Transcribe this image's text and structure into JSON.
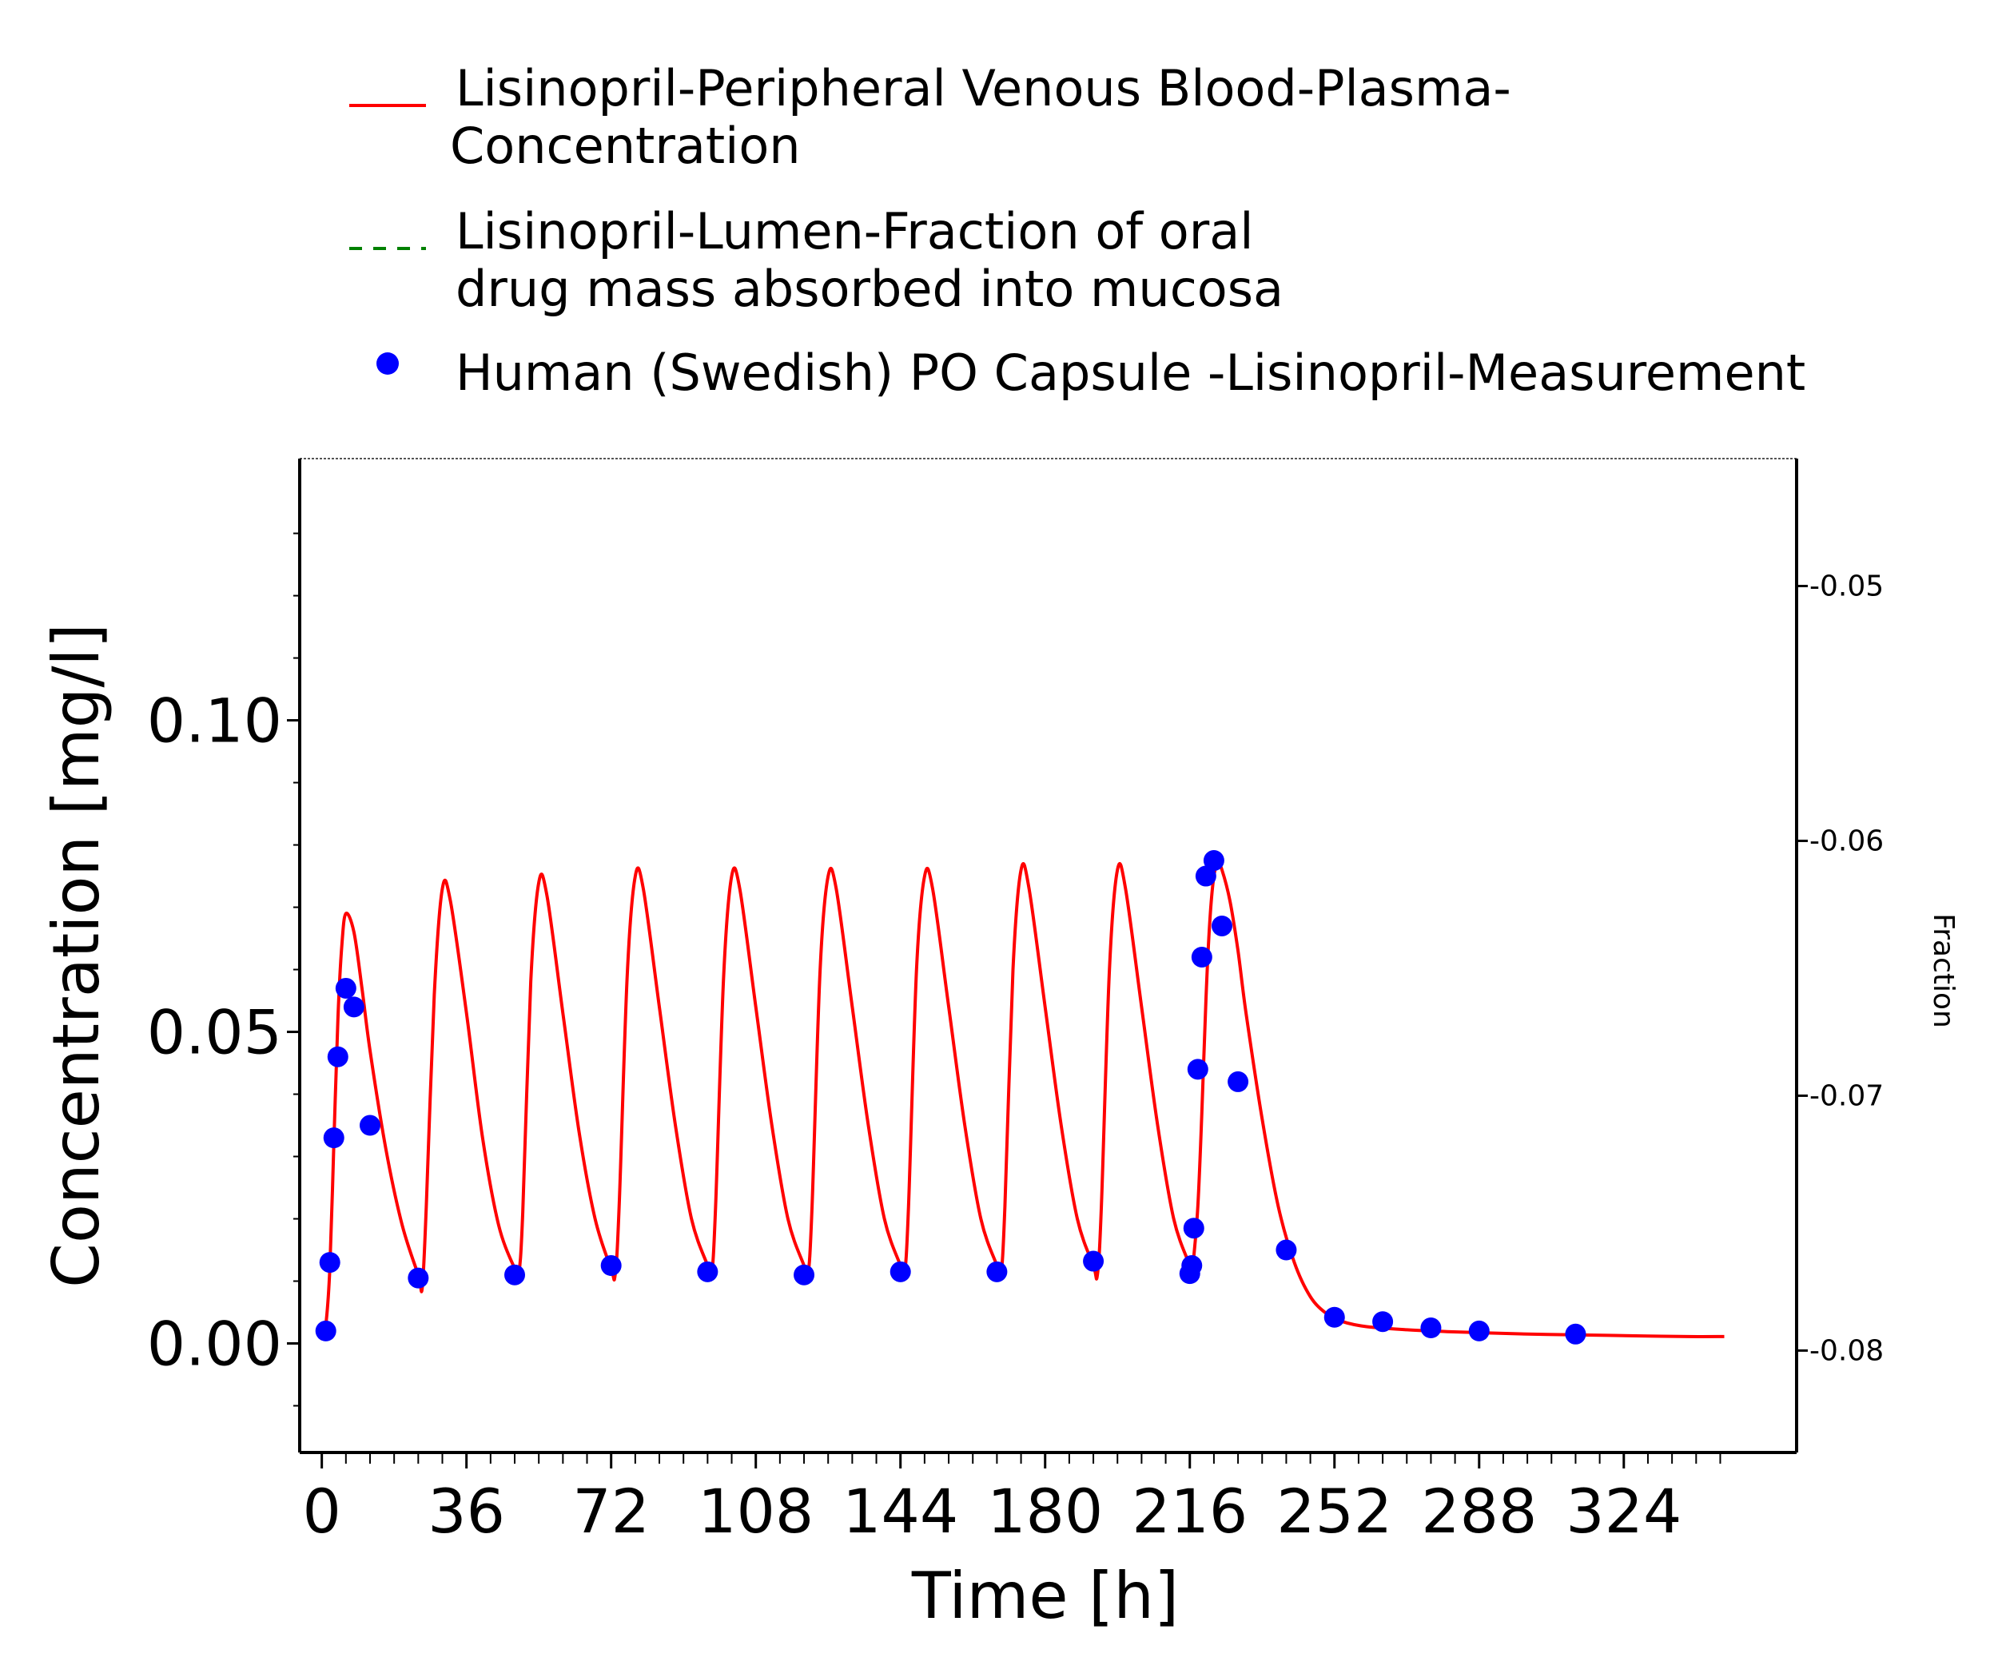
{
  "chart_data": {
    "type": "line",
    "title": "",
    "xlabel": "Time [h]",
    "ylabel": "Concentration [mg/l]",
    "y2label": "Fraction",
    "xlim": [
      -5.5,
      367
    ],
    "ylim": [
      -0.0175,
      0.142
    ],
    "y2lim": [
      -0.084,
      -0.045
    ],
    "x_ticks": [
      0,
      36,
      72,
      108,
      144,
      180,
      216,
      252,
      288,
      324
    ],
    "x_tick_labels": [
      "0",
      "36",
      "72",
      "108",
      "144",
      "180",
      "216",
      "252",
      "288",
      "324"
    ],
    "y_ticks": [
      0.0,
      0.05,
      0.1
    ],
    "y_tick_labels": [
      "0.00",
      "0.05",
      "0.10"
    ],
    "y2_ticks": [
      -0.08,
      -0.07,
      -0.06,
      -0.05
    ],
    "y2_tick_labels": [
      "-0.08",
      "-0.07",
      "-0.06",
      "-0.05"
    ],
    "grid": false,
    "legend_position": "top",
    "series": [
      {
        "name": "Lisinopril-Peripheral Venous Blood-Plasma-Concentration",
        "legend_lines": [
          "Lisinopril-Peripheral Venous Blood-Plasma-",
          "Concentration"
        ],
        "style": "solid",
        "color": "#ff0000",
        "x": [
          0,
          1,
          2,
          3,
          4,
          5,
          6,
          8,
          10,
          12,
          16,
          20,
          24,
          25,
          26,
          28,
          30,
          32,
          36,
          40,
          44,
          48,
          49,
          50,
          52,
          54,
          56,
          60,
          64,
          68,
          72,
          73,
          74,
          76,
          78,
          80,
          84,
          88,
          92,
          96,
          97,
          98,
          100,
          102,
          104,
          108,
          112,
          116,
          120,
          121,
          122,
          124,
          126,
          128,
          132,
          136,
          140,
          144,
          145,
          146,
          148,
          150,
          152,
          156,
          160,
          164,
          168,
          169,
          170,
          172,
          174,
          176,
          180,
          184,
          188,
          192,
          193,
          194,
          196,
          198,
          200,
          204,
          208,
          212,
          216,
          216.5,
          217,
          218,
          219,
          220,
          221,
          222,
          223,
          224,
          226,
          228,
          230,
          234,
          238,
          242,
          246,
          250,
          254,
          260,
          270,
          280,
          290,
          300,
          310,
          320,
          330,
          340,
          349
        ],
        "y": [
          0.0005,
          0.003,
          0.012,
          0.032,
          0.052,
          0.064,
          0.069,
          0.066,
          0.057,
          0.047,
          0.031,
          0.019,
          0.011,
          0.009,
          0.022,
          0.056,
          0.073,
          0.071,
          0.053,
          0.033,
          0.019,
          0.012,
          0.011,
          0.021,
          0.058,
          0.074,
          0.072,
          0.053,
          0.034,
          0.02,
          0.012,
          0.011,
          0.022,
          0.059,
          0.075,
          0.073,
          0.054,
          0.035,
          0.02,
          0.0125,
          0.011,
          0.022,
          0.059,
          0.075,
          0.073,
          0.054,
          0.035,
          0.02,
          0.0125,
          0.011,
          0.022,
          0.06,
          0.075,
          0.073,
          0.054,
          0.035,
          0.02,
          0.0125,
          0.011,
          0.022,
          0.06,
          0.075,
          0.073,
          0.054,
          0.035,
          0.02,
          0.0125,
          0.011,
          0.022,
          0.06,
          0.076,
          0.073,
          0.054,
          0.035,
          0.02,
          0.0125,
          0.011,
          0.022,
          0.06,
          0.076,
          0.073,
          0.054,
          0.035,
          0.02,
          0.0125,
          0.0115,
          0.014,
          0.022,
          0.037,
          0.055,
          0.068,
          0.075,
          0.077,
          0.076,
          0.071,
          0.063,
          0.053,
          0.036,
          0.022,
          0.013,
          0.0075,
          0.0048,
          0.0035,
          0.0027,
          0.0022,
          0.0019,
          0.0017,
          0.0015,
          0.0014,
          0.0013,
          0.0012,
          0.0011,
          0.0011
        ]
      },
      {
        "name": "Lisinopril-Lumen-Fraction of oral drug mass absorbed into mucosa",
        "legend_lines": [
          "Lisinopril-Lumen-Fraction of oral",
          "drug mass absorbed into mucosa"
        ],
        "style": "dashed",
        "color": "#008000",
        "x": [],
        "y": []
      },
      {
        "name": "Human (Swedish) PO Capsule -Lisinopril-Measurement",
        "legend_lines": [
          "Human (Swedish) PO Capsule -Lisinopril-Measurement"
        ],
        "style": "points",
        "color": "#0000ff",
        "x": [
          1,
          2,
          3,
          4,
          6,
          8,
          12,
          24,
          48,
          72,
          96,
          120,
          144,
          168,
          192,
          216,
          216.5,
          217,
          218,
          219,
          220,
          222,
          224,
          228,
          240,
          252,
          264,
          276,
          288,
          312
        ],
        "y": [
          0.002,
          0.013,
          0.033,
          0.046,
          0.057,
          0.054,
          0.035,
          0.0105,
          0.011,
          0.0125,
          0.0115,
          0.011,
          0.0115,
          0.0115,
          0.0132,
          0.0112,
          0.0125,
          0.0185,
          0.044,
          0.062,
          0.075,
          0.0775,
          0.067,
          0.042,
          0.015,
          0.0042,
          0.0035,
          0.0025,
          0.002,
          0.0015
        ]
      }
    ]
  }
}
